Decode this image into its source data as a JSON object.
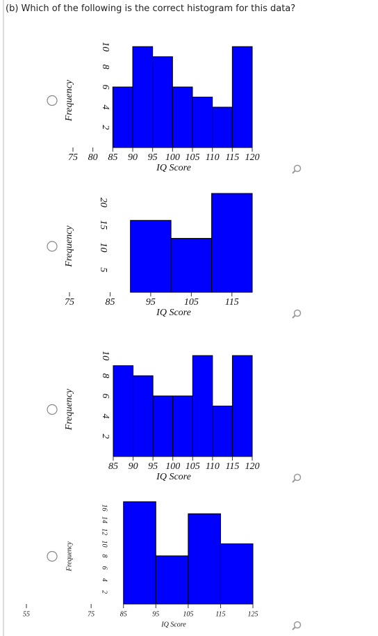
{
  "question": "(b) Which of the following is the correct histogram for this data?",
  "chart_data": [
    {
      "type": "histogram",
      "bins": [
        85,
        90,
        95,
        100,
        105,
        110,
        115,
        120
      ],
      "values": [
        6,
        10,
        9,
        6,
        5,
        4,
        10
      ],
      "color": "#0000ff",
      "xlim": [
        75,
        120
      ],
      "xticks": [
        75,
        80,
        85,
        90,
        95,
        100,
        105,
        110,
        115,
        120
      ],
      "ylim": [
        0,
        10
      ],
      "yticks": [
        2,
        4,
        6,
        8,
        10
      ],
      "x_label": "IQ Score",
      "y_label": "Frequency"
    },
    {
      "type": "histogram",
      "bins": [
        90,
        100,
        110,
        120
      ],
      "values": [
        16,
        12,
        22
      ],
      "color": "#0000ff",
      "xlim": [
        75,
        120
      ],
      "xticks": [
        75,
        85,
        95,
        105,
        115
      ],
      "ylim": [
        0,
        22
      ],
      "yticks": [
        5,
        10,
        15,
        20
      ],
      "x_label": "IQ Score",
      "y_label": "Frequency"
    },
    {
      "type": "histogram",
      "bins": [
        85,
        90,
        95,
        100,
        105,
        110,
        115,
        120
      ],
      "values": [
        9,
        8,
        6,
        6,
        10,
        5,
        10
      ],
      "color": "#0000ff",
      "xlim": [
        85,
        120
      ],
      "xticks": [
        85,
        90,
        95,
        100,
        105,
        110,
        115,
        120
      ],
      "ylim": [
        0,
        10
      ],
      "yticks": [
        2,
        4,
        6,
        8,
        10
      ],
      "x_label": "IQ Score",
      "y_label": "Frequency"
    },
    {
      "type": "histogram",
      "bins": [
        85,
        95,
        105,
        115,
        125
      ],
      "values": [
        17,
        8,
        15,
        10
      ],
      "color": "#0000ff",
      "xlim": [
        55,
        125
      ],
      "xticks": [
        55,
        75,
        85,
        95,
        105,
        115,
        125
      ],
      "ylim": [
        0,
        17
      ],
      "yticks": [
        2,
        4,
        6,
        8,
        10,
        12,
        14,
        16
      ],
      "x_label": "IQ Score",
      "y_label": "Frequency"
    }
  ]
}
